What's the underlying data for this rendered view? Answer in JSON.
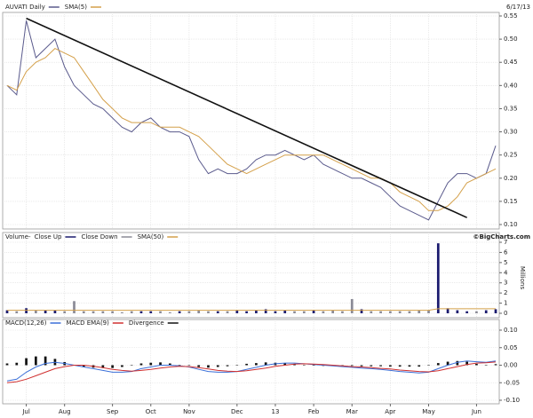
{
  "chart_data": [
    {
      "type": "line",
      "date_label": "6/17/13",
      "series": [
        {
          "name": "AUVATI Daily",
          "color": "#5a5a8c",
          "values": [
            0.4,
            0.38,
            0.54,
            0.46,
            0.48,
            0.5,
            0.44,
            0.4,
            0.38,
            0.36,
            0.35,
            0.33,
            0.31,
            0.3,
            0.32,
            0.33,
            0.31,
            0.3,
            0.3,
            0.29,
            0.24,
            0.21,
            0.22,
            0.21,
            0.21,
            0.22,
            0.24,
            0.25,
            0.25,
            0.26,
            0.25,
            0.24,
            0.25,
            0.23,
            0.22,
            0.21,
            0.2,
            0.2,
            0.19,
            0.18,
            0.16,
            0.14,
            0.13,
            0.12,
            0.11,
            0.15,
            0.19,
            0.21,
            0.21,
            0.2,
            0.21,
            0.27
          ]
        },
        {
          "name": "SMA(5)",
          "color": "#d4a04a",
          "values": [
            0.4,
            0.39,
            0.43,
            0.45,
            0.46,
            0.48,
            0.47,
            0.46,
            0.43,
            0.4,
            0.37,
            0.35,
            0.33,
            0.32,
            0.32,
            0.32,
            0.31,
            0.31,
            0.31,
            0.3,
            0.29,
            0.27,
            0.25,
            0.23,
            0.22,
            0.21,
            0.22,
            0.23,
            0.24,
            0.25,
            0.25,
            0.25,
            0.25,
            0.25,
            0.24,
            0.23,
            0.22,
            0.21,
            0.2,
            0.2,
            0.19,
            0.17,
            0.16,
            0.15,
            0.13,
            0.13,
            0.14,
            0.16,
            0.19,
            0.2,
            0.21,
            0.22
          ]
        }
      ],
      "trendline": {
        "color": "#111111",
        "from": {
          "index": 2,
          "value": 0.545
        },
        "to": {
          "index": 48,
          "value": 0.115
        }
      },
      "ylim": [
        0.1,
        0.55
      ],
      "yticks": [
        {
          "value": 0.1,
          "label": "0.10"
        },
        0.15,
        {
          "value": 0.2,
          "label": "0.20"
        },
        0.25,
        {
          "value": 0.3,
          "label": "0.30"
        },
        0.35,
        {
          "value": 0.4,
          "label": "0.40"
        },
        0.45,
        {
          "value": 0.5,
          "label": "0.50"
        },
        0.55
      ],
      "grid": true
    },
    {
      "type": "bar",
      "title": "Volume-",
      "annotation": "©BigCharts.com",
      "y_label": "Millions",
      "series": [
        {
          "name": "Close Up",
          "color": "#1a1a6e",
          "values": [
            0.3,
            null,
            0.5,
            null,
            0.3,
            0.3,
            null,
            null,
            null,
            null,
            null,
            null,
            null,
            null,
            0.2,
            0.2,
            null,
            null,
            0.2,
            null,
            null,
            null,
            0.2,
            null,
            0.3,
            0.2,
            0.3,
            0.4,
            0.2,
            0.3,
            null,
            null,
            0.3,
            null,
            null,
            null,
            null,
            0.4,
            null,
            null,
            null,
            null,
            null,
            null,
            null,
            6.9,
            0.5,
            0.3,
            0.2,
            null,
            0.3,
            0.4
          ]
        },
        {
          "name": "Close Down",
          "color": "#8a8a96",
          "values": [
            null,
            0.2,
            null,
            0.3,
            null,
            null,
            0.2,
            1.2,
            0.2,
            0.2,
            0.2,
            0.2,
            0.1,
            0.2,
            null,
            null,
            0.2,
            0.1,
            null,
            0.2,
            0.3,
            0.2,
            null,
            0.2,
            null,
            null,
            null,
            null,
            null,
            null,
            0.2,
            0.2,
            null,
            0.2,
            0.3,
            0.2,
            1.4,
            null,
            0.2,
            0.2,
            0.2,
            0.2,
            0.2,
            0.3,
            0.3,
            null,
            null,
            null,
            null,
            0.2,
            null,
            null
          ]
        },
        {
          "name": "SMA(50)",
          "color": "#d4a04a",
          "kind": "line",
          "values": [
            0.3,
            0.3,
            0.3,
            0.3,
            0.3,
            0.3,
            0.3,
            0.3,
            0.3,
            0.3,
            0.3,
            0.3,
            0.3,
            0.3,
            0.3,
            0.3,
            0.3,
            0.3,
            0.3,
            0.3,
            0.3,
            0.3,
            0.3,
            0.3,
            0.3,
            0.3,
            0.3,
            0.3,
            0.3,
            0.3,
            0.3,
            0.3,
            0.3,
            0.3,
            0.3,
            0.3,
            0.3,
            0.3,
            0.3,
            0.3,
            0.3,
            0.3,
            0.3,
            0.3,
            0.3,
            0.45,
            0.45,
            0.45,
            0.45,
            0.45,
            0.45,
            0.45
          ]
        }
      ],
      "ylim": [
        0,
        7
      ],
      "yticks": [
        0,
        1,
        2,
        3,
        4,
        5,
        6,
        7
      ],
      "grid": true
    },
    {
      "type": "line",
      "categories": [
        null,
        null,
        "Jul",
        null,
        null,
        null,
        "Aug",
        null,
        null,
        null,
        null,
        "Sep",
        null,
        null,
        null,
        "Oct",
        null,
        null,
        null,
        "Nov",
        null,
        null,
        null,
        null,
        "Dec",
        null,
        null,
        null,
        "13",
        null,
        null,
        null,
        "Feb",
        null,
        null,
        null,
        "Mar",
        null,
        null,
        null,
        "Apr",
        null,
        null,
        null,
        "May",
        null,
        null,
        null,
        null,
        "Jun",
        null,
        null
      ],
      "series": [
        {
          "name": "MACD(12,26)",
          "color": "#3a6fd8",
          "values": [
            -0.045,
            -0.04,
            -0.02,
            -0.005,
            0.005,
            0.008,
            0.005,
            0.0,
            -0.005,
            -0.01,
            -0.015,
            -0.02,
            -0.02,
            -0.018,
            -0.01,
            -0.005,
            0.0,
            0.0,
            -0.002,
            -0.005,
            -0.012,
            -0.018,
            -0.02,
            -0.02,
            -0.018,
            -0.012,
            -0.006,
            0.0,
            0.004,
            0.006,
            0.006,
            0.004,
            0.002,
            0.0,
            -0.002,
            -0.004,
            -0.006,
            -0.008,
            -0.01,
            -0.012,
            -0.015,
            -0.018,
            -0.02,
            -0.022,
            -0.02,
            -0.01,
            0.0,
            0.008,
            0.012,
            0.01,
            0.008,
            0.012
          ]
        },
        {
          "name": "MACD EMA(9)",
          "color": "#d03030",
          "values": [
            -0.05,
            -0.047,
            -0.04,
            -0.03,
            -0.02,
            -0.01,
            -0.004,
            0.0,
            0.0,
            -0.003,
            -0.007,
            -0.012,
            -0.015,
            -0.017,
            -0.015,
            -0.012,
            -0.008,
            -0.005,
            -0.003,
            -0.004,
            -0.007,
            -0.011,
            -0.015,
            -0.017,
            -0.018,
            -0.016,
            -0.012,
            -0.008,
            -0.003,
            0.0,
            0.003,
            0.004,
            0.003,
            0.002,
            0.0,
            -0.002,
            -0.004,
            -0.005,
            -0.007,
            -0.009,
            -0.011,
            -0.014,
            -0.016,
            -0.018,
            -0.019,
            -0.016,
            -0.01,
            -0.004,
            0.002,
            0.006,
            0.007,
            0.009
          ]
        },
        {
          "name": "Divergence",
          "color": "#111111",
          "kind": "bar",
          "values": [
            0.005,
            0.007,
            0.02,
            0.025,
            0.025,
            0.018,
            0.009,
            0.0,
            -0.005,
            -0.007,
            -0.008,
            -0.008,
            -0.005,
            -0.001,
            0.005,
            0.007,
            0.008,
            0.005,
            0.001,
            -0.001,
            -0.005,
            -0.007,
            -0.005,
            -0.003,
            0.0,
            0.004,
            0.006,
            0.008,
            0.007,
            0.006,
            0.003,
            0.0,
            -0.001,
            -0.002,
            -0.002,
            -0.002,
            -0.002,
            -0.003,
            -0.003,
            -0.003,
            -0.004,
            -0.004,
            -0.004,
            -0.004,
            -0.001,
            0.006,
            0.01,
            0.012,
            0.01,
            0.004,
            0.001,
            0.003
          ]
        }
      ],
      "ylim": [
        -0.1,
        0.1
      ],
      "yticks": [
        {
          "value": -0.1,
          "label": "-0.10"
        },
        -0.05,
        {
          "value": 0,
          "label": "0.00"
        },
        0.05,
        {
          "value": 0.1,
          "label": "0.10"
        }
      ],
      "grid": true
    }
  ]
}
